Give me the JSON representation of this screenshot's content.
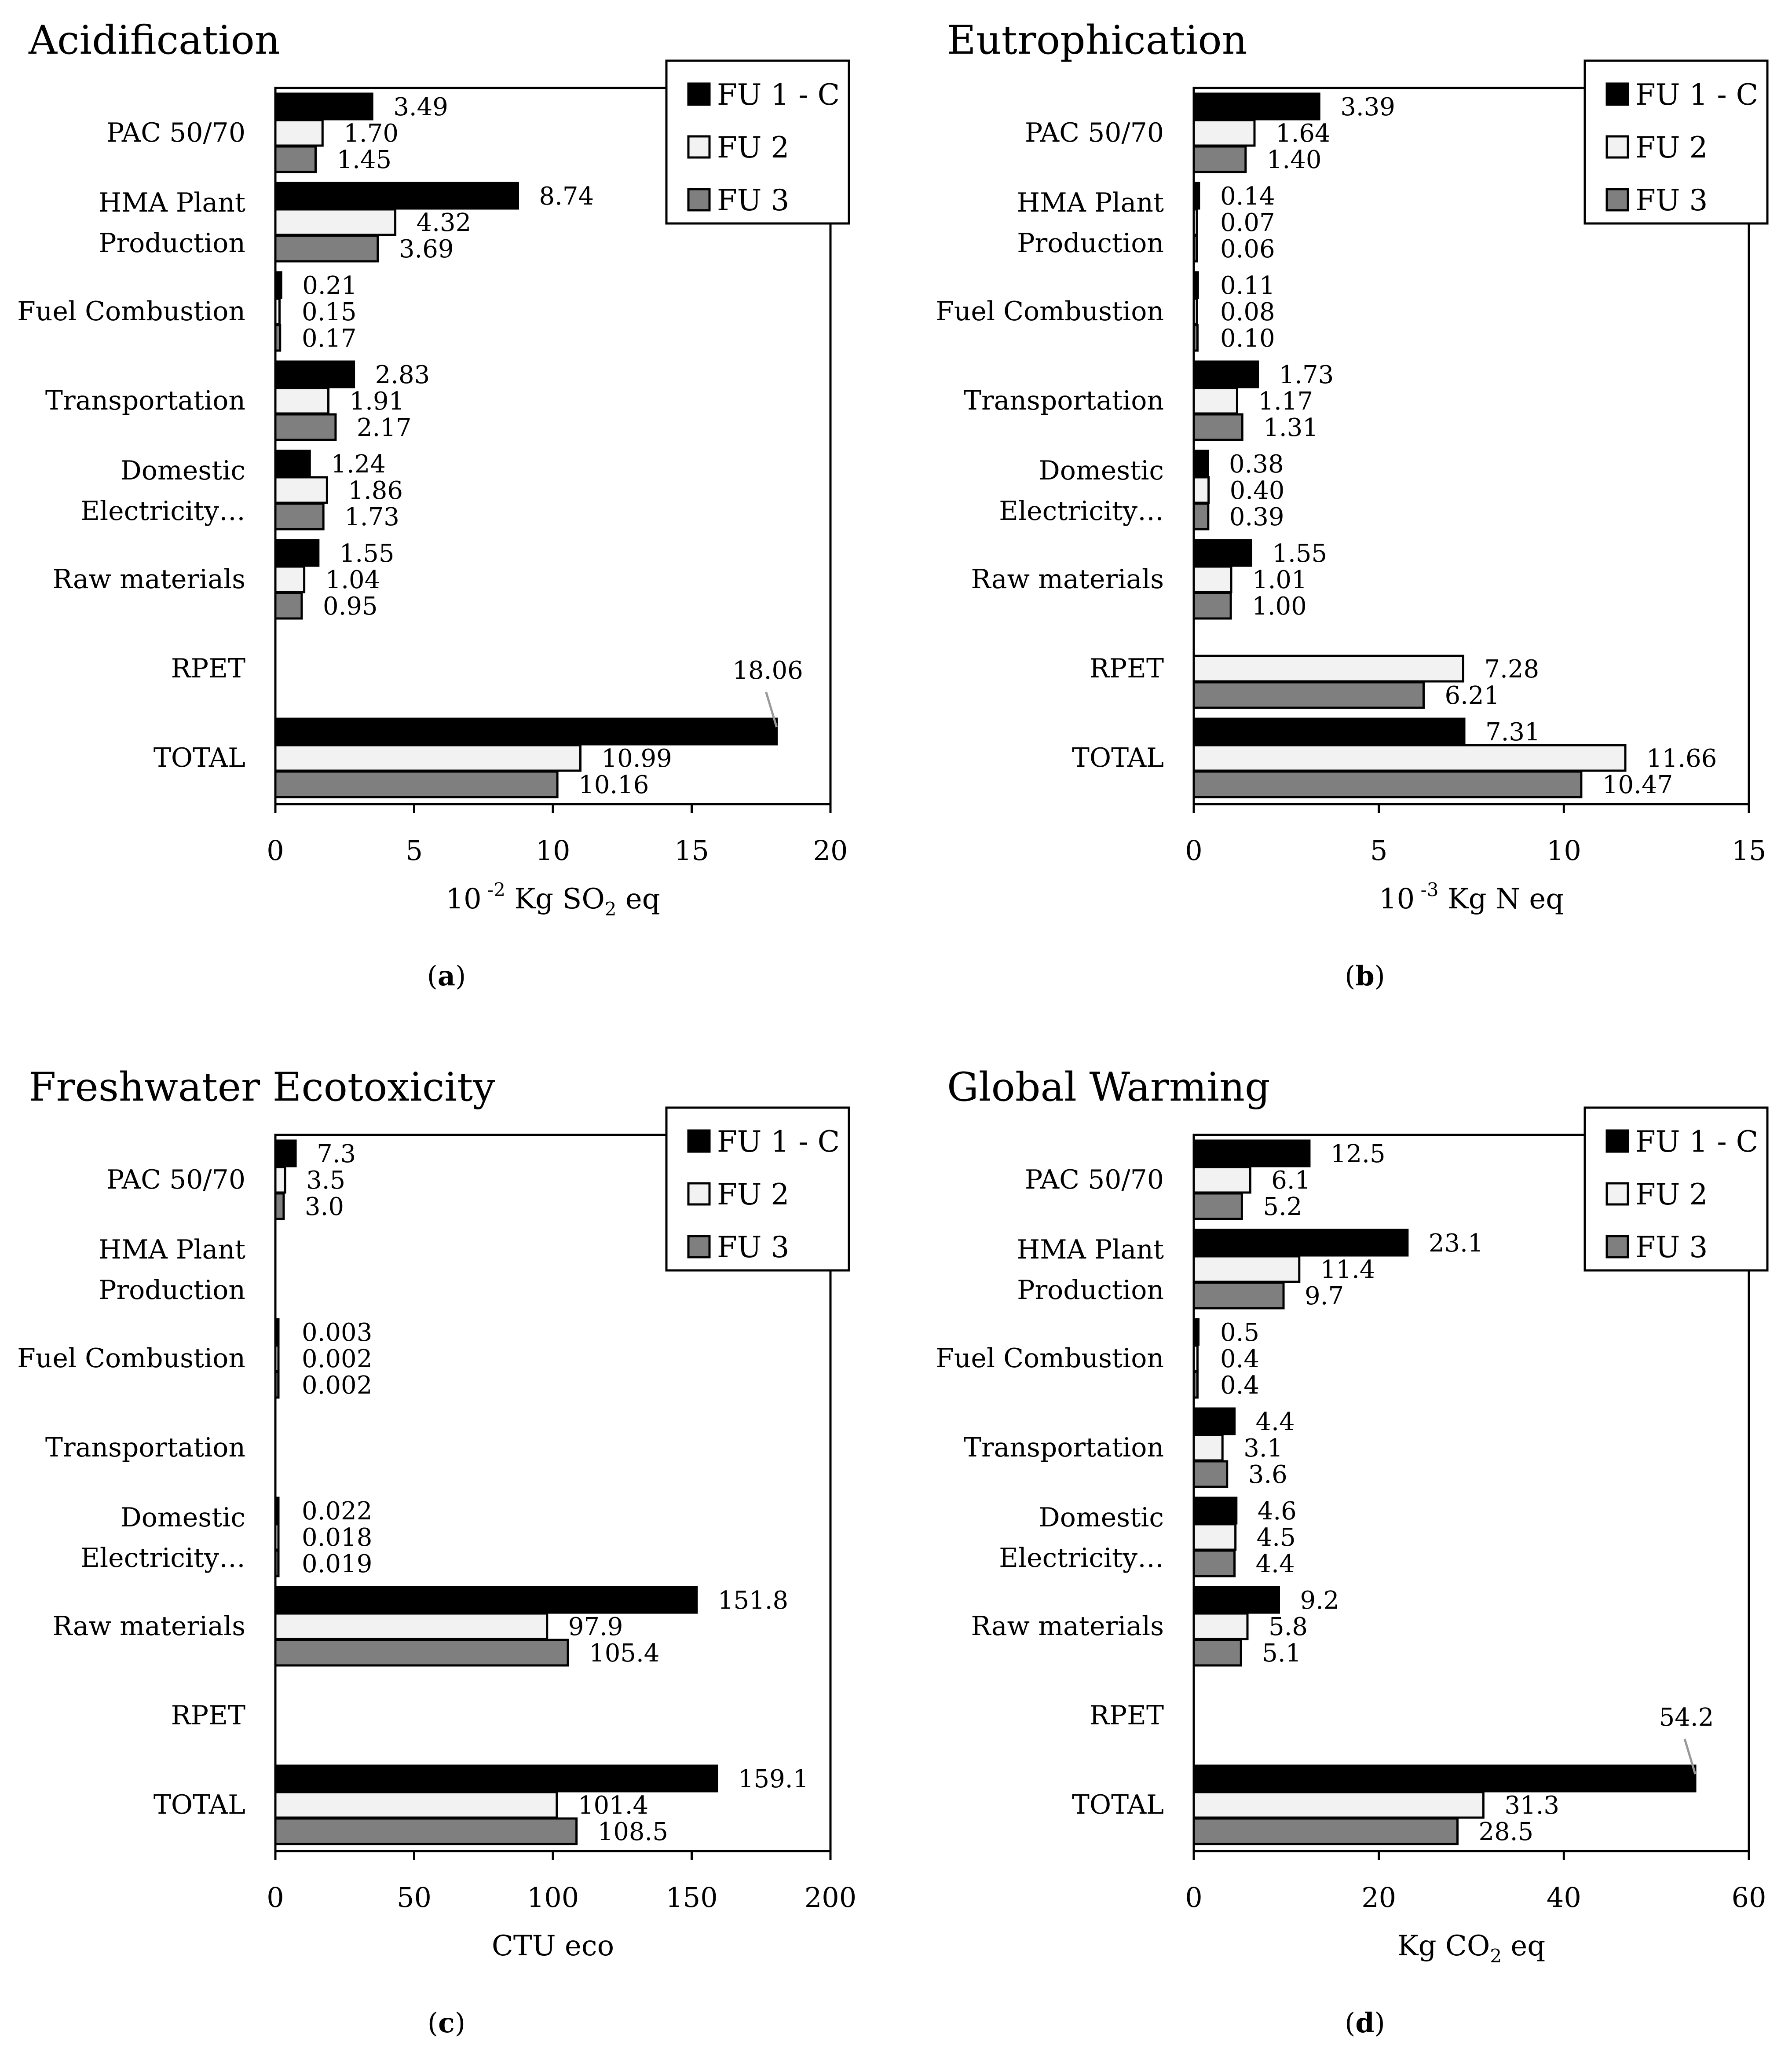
{
  "colors": {
    "FU 1 - C": "#000000",
    "FU 2": "#f2f2f2",
    "FU 3": "#7f7f7f"
  },
  "chart_data": [
    {
      "type": "bar",
      "orientation": "horizontal",
      "panel": "(a)",
      "title": "Acidification",
      "xlabel": "10 -2 Kg SO2 eq",
      "xlabel_parts": [
        "10",
        "-2",
        " Kg SO",
        "2",
        " eq"
      ],
      "xlim": [
        0,
        20
      ],
      "xticks": [
        0,
        5,
        10,
        15,
        20
      ],
      "legend": "top-right",
      "categories": [
        "PAC 50/70",
        "HMA Plant Production",
        "Fuel Combustion",
        "Transportation",
        "Domestic Electricity…",
        "Raw materials",
        "RPET",
        "TOTAL"
      ],
      "category_lines": [
        [
          "PAC 50/70"
        ],
        [
          "HMA Plant",
          "Production"
        ],
        [
          "Fuel Combustion"
        ],
        [
          "Transportation"
        ],
        [
          "Domestic",
          "Electricity…"
        ],
        [
          "Raw materials"
        ],
        [
          "RPET"
        ],
        [
          "TOTAL"
        ]
      ],
      "series": [
        {
          "name": "FU 1 - C",
          "values": [
            3.49,
            8.74,
            0.21,
            2.83,
            1.24,
            1.55,
            null,
            18.06
          ],
          "labels": [
            "3.49",
            "8.74",
            "0.21",
            "2.83",
            "1.24",
            "1.55",
            "",
            "18.06"
          ]
        },
        {
          "name": "FU 2",
          "values": [
            1.7,
            4.32,
            0.15,
            1.91,
            1.86,
            1.04,
            null,
            10.99
          ],
          "labels": [
            "1.70",
            "4.32",
            "0.15",
            "1.91",
            "1.86",
            "1.04",
            "",
            "10.99"
          ]
        },
        {
          "name": "FU 3",
          "values": [
            1.45,
            3.69,
            0.17,
            2.17,
            1.73,
            0.95,
            null,
            10.16
          ],
          "labels": [
            "1.45",
            "3.69",
            "0.17",
            "2.17",
            "1.73",
            "0.95",
            "",
            "10.16"
          ]
        }
      ]
    },
    {
      "type": "bar",
      "orientation": "horizontal",
      "panel": "(b)",
      "title": "Eutrophication",
      "xlabel": "10 -3 Kg N eq",
      "xlabel_parts": [
        "10",
        "-3",
        " Kg N eq"
      ],
      "xlim": [
        0,
        15
      ],
      "xticks": [
        0,
        5,
        10,
        15
      ],
      "legend": "top-right",
      "categories": [
        "PAC 50/70",
        "HMA Plant Production",
        "Fuel Combustion",
        "Transportation",
        "Domestic Electricity…",
        "Raw materials",
        "RPET",
        "TOTAL"
      ],
      "category_lines": [
        [
          "PAC 50/70"
        ],
        [
          "HMA Plant",
          "Production"
        ],
        [
          "Fuel Combustion"
        ],
        [
          "Transportation"
        ],
        [
          "Domestic",
          "Electricity…"
        ],
        [
          "Raw materials"
        ],
        [
          "RPET"
        ],
        [
          "TOTAL"
        ]
      ],
      "series": [
        {
          "name": "FU 1 - C",
          "values": [
            3.39,
            0.14,
            0.11,
            1.73,
            0.38,
            1.55,
            null,
            7.31
          ],
          "labels": [
            "3.39",
            "0.14",
            "0.11",
            "1.73",
            "0.38",
            "1.55",
            "",
            "7.31"
          ]
        },
        {
          "name": "FU 2",
          "values": [
            1.64,
            0.07,
            0.08,
            1.17,
            0.4,
            1.01,
            7.28,
            11.66
          ],
          "labels": [
            "1.64",
            "0.07",
            "0.08",
            "1.17",
            "0.40",
            "1.01",
            "7.28",
            "11.66"
          ]
        },
        {
          "name": "FU 3",
          "values": [
            1.4,
            0.06,
            0.1,
            1.31,
            0.39,
            1.0,
            6.21,
            10.47
          ],
          "labels": [
            "1.40",
            "0.06",
            "0.10",
            "1.31",
            "0.39",
            "1.00",
            "6.21",
            "10.47"
          ]
        }
      ]
    },
    {
      "type": "bar",
      "orientation": "horizontal",
      "panel": "(c)",
      "title": "Freshwater Ecotoxicity",
      "xlabel": "CTU eco",
      "xlabel_parts": [
        "CTU eco"
      ],
      "xlim": [
        0,
        200
      ],
      "xticks": [
        0,
        50,
        100,
        150,
        200
      ],
      "legend": "top-right",
      "categories": [
        "PAC 50/70",
        "HMA Plant Production",
        "Fuel Combustion",
        "Transportation",
        "Domestic Electricity…",
        "Raw materials",
        "RPET",
        "TOTAL"
      ],
      "category_lines": [
        [
          "PAC 50/70"
        ],
        [
          "HMA Plant",
          "Production"
        ],
        [
          "Fuel Combustion"
        ],
        [
          "Transportation"
        ],
        [
          "Domestic",
          "Electricity…"
        ],
        [
          "Raw materials"
        ],
        [
          "RPET"
        ],
        [
          "TOTAL"
        ]
      ],
      "series": [
        {
          "name": "FU 1 - C",
          "values": [
            7.3,
            null,
            0.003,
            null,
            0.022,
            151.8,
            null,
            159.1
          ],
          "labels": [
            "7.3",
            "",
            "0.003",
            "",
            "0.022",
            "151.8",
            "",
            "159.1"
          ]
        },
        {
          "name": "FU 2",
          "values": [
            3.5,
            null,
            0.002,
            null,
            0.018,
            97.9,
            null,
            101.4
          ],
          "labels": [
            "3.5",
            "",
            "0.002",
            "",
            "0.018",
            "97.9",
            "",
            "101.4"
          ]
        },
        {
          "name": "FU 3",
          "values": [
            3.0,
            null,
            0.002,
            null,
            0.019,
            105.4,
            null,
            108.5
          ],
          "labels": [
            "3.0",
            "",
            "0.002",
            "",
            "0.019",
            "105.4",
            "",
            "108.5"
          ]
        }
      ]
    },
    {
      "type": "bar",
      "orientation": "horizontal",
      "panel": "(d)",
      "title": "Global Warming",
      "xlabel": "Kg CO2 eq",
      "xlabel_parts": [
        "Kg CO",
        "2",
        " eq"
      ],
      "xlim": [
        0,
        60
      ],
      "xticks": [
        0,
        20,
        40,
        60
      ],
      "legend": "top-right",
      "categories": [
        "PAC 50/70",
        "HMA Plant Production",
        "Fuel Combustion",
        "Transportation",
        "Domestic Electricity…",
        "Raw materials",
        "RPET",
        "TOTAL"
      ],
      "category_lines": [
        [
          "PAC 50/70"
        ],
        [
          "HMA Plant",
          "Production"
        ],
        [
          "Fuel Combustion"
        ],
        [
          "Transportation"
        ],
        [
          "Domestic",
          "Electricity…"
        ],
        [
          "Raw materials"
        ],
        [
          "RPET"
        ],
        [
          "TOTAL"
        ]
      ],
      "series": [
        {
          "name": "FU 1 - C",
          "values": [
            12.5,
            23.1,
            0.5,
            4.4,
            4.6,
            9.2,
            null,
            54.2
          ],
          "labels": [
            "12.5",
            "23.1",
            "0.5",
            "4.4",
            "4.6",
            "9.2",
            "",
            "54.2"
          ]
        },
        {
          "name": "FU 2",
          "values": [
            6.1,
            11.4,
            0.4,
            3.1,
            4.5,
            5.8,
            null,
            31.3
          ],
          "labels": [
            "6.1",
            "11.4",
            "0.4",
            "3.1",
            "4.5",
            "5.8",
            "",
            "31.3"
          ]
        },
        {
          "name": "FU 3",
          "values": [
            5.2,
            9.7,
            0.4,
            3.6,
            4.4,
            5.1,
            null,
            28.5
          ],
          "labels": [
            "5.2",
            "9.7",
            "0.4",
            "3.6",
            "4.4",
            "5.1",
            "",
            "28.5"
          ]
        }
      ]
    }
  ]
}
